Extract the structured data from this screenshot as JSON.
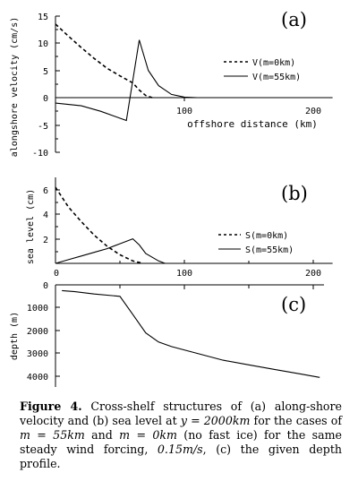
{
  "chart_data": [
    {
      "type": "line",
      "panel_label": "(a)",
      "xlabel": "offshore distance (km)",
      "ylabel": "alongshore velocity (cm/s)",
      "xlim": [
        0,
        215
      ],
      "ylim": [
        -10,
        15
      ],
      "xticks": [
        "100",
        "200"
      ],
      "yticks": [
        "15",
        "10",
        "5",
        "0",
        "-5",
        "-10"
      ],
      "legend_position": "right",
      "series": [
        {
          "name": "V(m=0km)",
          "style": "dashed",
          "x": [
            0,
            10,
            20,
            30,
            40,
            50,
            60,
            65,
            70,
            75
          ],
          "y": [
            13.5,
            11.3,
            9.2,
            7.2,
            5.4,
            4.0,
            2.7,
            1.4,
            0.4,
            0.0
          ]
        },
        {
          "name": "V(m=55km)",
          "style": "solid",
          "x": [
            0,
            20,
            35,
            55,
            65,
            72,
            80,
            90,
            100,
            110,
            120,
            130,
            150,
            215
          ],
          "y": [
            -1.0,
            -1.5,
            -2.5,
            -4.2,
            10.6,
            5.0,
            2.2,
            0.6,
            0.1,
            0.0,
            0.0,
            0.0,
            0.0,
            0.0
          ]
        }
      ]
    },
    {
      "type": "line",
      "panel_label": "(b)",
      "xlabel": "",
      "ylabel": "sea level (cm)",
      "xlim": [
        0,
        215
      ],
      "ylim": [
        0,
        7
      ],
      "xticks": [
        "0",
        "100",
        "200"
      ],
      "yticks": [
        "6",
        "4",
        "2"
      ],
      "legend_position": "right",
      "series": [
        {
          "name": "S(m=0km)",
          "style": "dashed",
          "x": [
            0,
            10,
            20,
            30,
            40,
            50,
            60,
            68
          ],
          "y": [
            6.2,
            4.6,
            3.4,
            2.3,
            1.4,
            0.7,
            0.2,
            0.0
          ]
        },
        {
          "name": "S(m=55km)",
          "style": "solid",
          "x": [
            0,
            10,
            20,
            30,
            40,
            50,
            60,
            65,
            70,
            80,
            85,
            215
          ],
          "y": [
            0.0,
            0.3,
            0.6,
            0.9,
            1.2,
            1.6,
            2.0,
            1.5,
            0.8,
            0.2,
            0.0,
            0.0
          ]
        }
      ]
    },
    {
      "type": "line",
      "panel_label": "(c)",
      "xlabel": "",
      "ylabel": "depth (m)",
      "xlim": [
        0,
        215
      ],
      "ylim": [
        4500,
        0
      ],
      "xticks": [],
      "yticks": [
        "0",
        "1000",
        "2000",
        "3000",
        "4000"
      ],
      "series": [
        {
          "name": "",
          "style": "solid",
          "x": [
            5,
            15,
            30,
            50,
            60,
            70,
            80,
            90,
            110,
            130,
            150,
            170,
            190,
            205
          ],
          "y": [
            250,
            300,
            400,
            500,
            1300,
            2100,
            2500,
            2700,
            3000,
            3300,
            3500,
            3700,
            3900,
            4050
          ]
        }
      ]
    }
  ],
  "caption": {
    "lead": "Figure 4.",
    "text1": " Cross-shelf structures of (a) along-shore velocity and (b) sea level at ",
    "m1": "y = 2000km",
    "text2": " for the cases of ",
    "m2": "m = 55km",
    "text3": " and ",
    "m3": "m = 0km",
    "text4": " (no fast ice) for the same steady wind forcing, ",
    "m4": "0.15m/s",
    "text5": ", (c) the given depth profile."
  }
}
